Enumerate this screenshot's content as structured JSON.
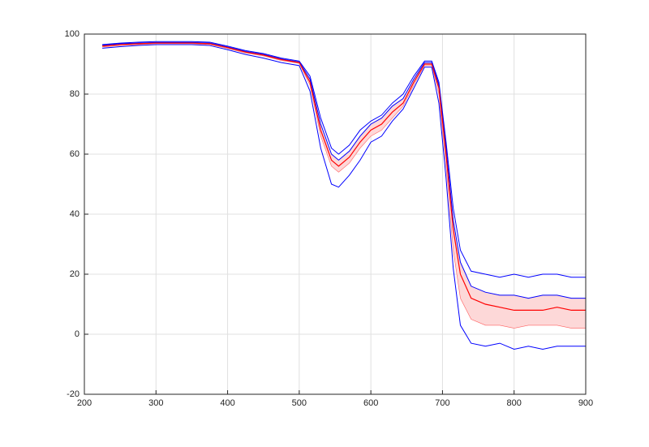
{
  "chart_data": {
    "type": "line",
    "x": [
      225,
      250,
      275,
      300,
      325,
      350,
      375,
      400,
      425,
      450,
      475,
      500,
      515,
      530,
      545,
      555,
      570,
      585,
      600,
      615,
      630,
      645,
      660,
      675,
      685,
      695,
      705,
      715,
      725,
      740,
      760,
      780,
      800,
      820,
      840,
      860,
      880,
      900
    ],
    "series": [
      {
        "color": "#0000ff",
        "width": 1,
        "values": [
          96.5,
          97,
          97.3,
          97.5,
          97.5,
          97.5,
          97.3,
          96,
          94.5,
          93.5,
          92,
          91,
          86,
          72,
          62,
          60,
          63,
          68,
          71,
          73,
          77,
          80,
          86,
          91,
          91,
          84,
          64,
          42,
          28,
          21,
          20,
          19,
          20,
          19,
          20,
          20,
          19,
          19
        ]
      },
      {
        "color": "#0000ff",
        "width": 1,
        "values": [
          96.3,
          96.8,
          97,
          97.2,
          97.2,
          97.2,
          97,
          95.7,
          94.2,
          93.2,
          91.7,
          90.7,
          85,
          70,
          60,
          58,
          61,
          66,
          70,
          72,
          76,
          78.5,
          85,
          90.5,
          90.5,
          83,
          62,
          38,
          24,
          16,
          14,
          13,
          13,
          12,
          13,
          13,
          12,
          12
        ]
      },
      {
        "color": "#ff0000",
        "width": 1.2,
        "values": [
          96,
          96.5,
          96.8,
          97,
          97,
          97,
          96.8,
          95.5,
          94,
          93,
          91.5,
          90.5,
          84,
          68,
          58,
          56,
          59,
          64,
          68,
          70,
          74,
          77,
          84,
          90,
          90,
          82,
          60,
          35,
          20,
          12,
          10,
          9,
          8,
          8,
          8,
          9,
          8,
          8
        ]
      },
      {
        "color": "#ff6060",
        "width": 0.6,
        "values": [
          95.7,
          96.2,
          96.5,
          96.8,
          96.8,
          96.8,
          96.5,
          95.2,
          93.7,
          92.7,
          91.2,
          90.2,
          83,
          66,
          56,
          54,
          57,
          62,
          66,
          68,
          72,
          76,
          83,
          89.5,
          89.5,
          80,
          56,
          28,
          12,
          5,
          3,
          3,
          2,
          3,
          3,
          3,
          2,
          2
        ]
      },
      {
        "color": "#0000ff",
        "width": 1,
        "values": [
          95.3,
          95.8,
          96.2,
          96.5,
          96.5,
          96.5,
          96.2,
          94.8,
          93.2,
          92,
          90.5,
          89.5,
          81,
          62,
          50,
          49,
          53,
          58,
          64,
          66,
          71,
          75,
          82,
          89,
          89,
          77,
          52,
          22,
          3,
          -3,
          -4,
          -3,
          -5,
          -4,
          -5,
          -4,
          -4,
          -4
        ]
      }
    ],
    "fill_between": [
      1,
      3
    ],
    "fill_color": "#fdd8d8",
    "xlim": [
      200,
      900
    ],
    "xticks": [
      200,
      300,
      400,
      500,
      600,
      700,
      800,
      900
    ],
    "ylim": [
      -20,
      100
    ],
    "yticks": [
      -20,
      0,
      20,
      40,
      60,
      80,
      100
    ],
    "grid": true
  }
}
